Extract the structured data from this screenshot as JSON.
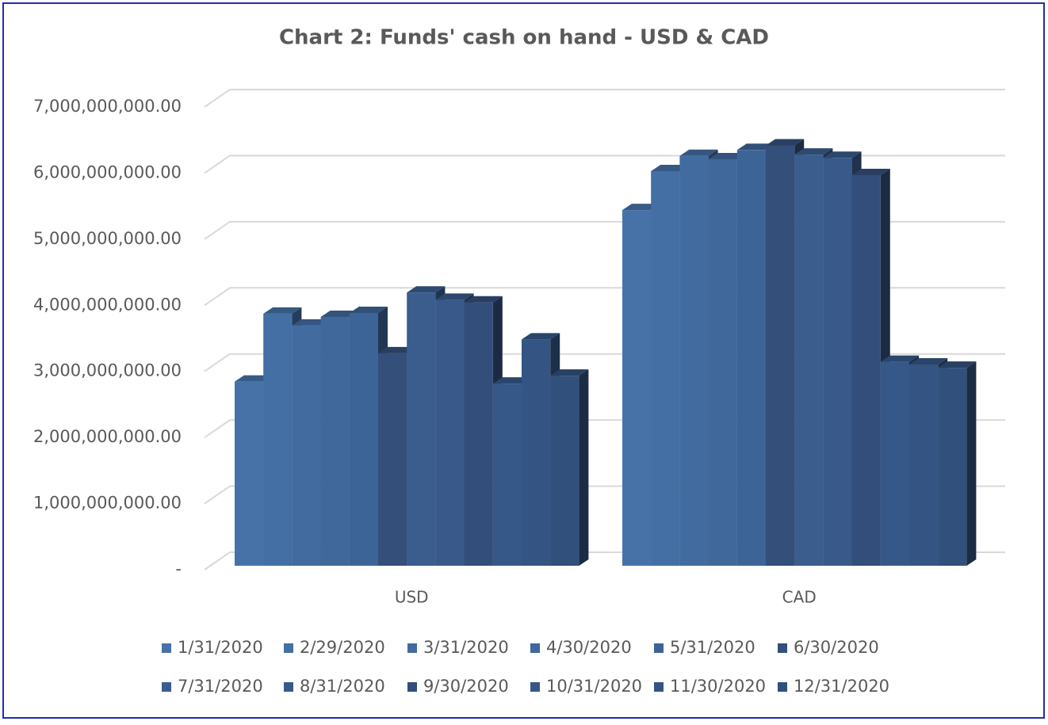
{
  "chart_data": {
    "type": "bar3d",
    "title": "Chart 2: Funds' cash on hand - USD & CAD",
    "categories": [
      "USD",
      "CAD"
    ],
    "ylim": [
      0,
      7000000000
    ],
    "yticks": [
      {
        "value": 0,
        "label": "-"
      },
      {
        "value": 1000000000,
        "label": "1,000,000,000.00"
      },
      {
        "value": 2000000000,
        "label": "2,000,000,000.00"
      },
      {
        "value": 3000000000,
        "label": "3,000,000,000.00"
      },
      {
        "value": 4000000000,
        "label": "4,000,000,000.00"
      },
      {
        "value": 5000000000,
        "label": "5,000,000,000.00"
      },
      {
        "value": 6000000000,
        "label": "6,000,000,000.00"
      },
      {
        "value": 7000000000,
        "label": "7,000,000,000.00"
      }
    ],
    "grid": true,
    "legend": "bottom",
    "series": [
      {
        "name": "1/31/2020",
        "color": "#4672a8",
        "values": [
          2790000000,
          5390000000
        ]
      },
      {
        "name": "2/29/2020",
        "color": "#446fa4",
        "values": [
          3820000000,
          5980000000
        ]
      },
      {
        "name": "3/31/2020",
        "color": "#426ca0",
        "values": [
          3640000000,
          6210000000
        ]
      },
      {
        "name": "4/30/2020",
        "color": "#40689b",
        "values": [
          3770000000,
          6160000000
        ]
      },
      {
        "name": "5/31/2020",
        "color": "#3d6496",
        "values": [
          3830000000,
          6300000000
        ]
      },
      {
        "name": "6/30/2020",
        "color": "#344f7a",
        "values": [
          3220000000,
          6370000000
        ]
      },
      {
        "name": "7/31/2020",
        "color": "#3a5d8e",
        "values": [
          4140000000,
          6230000000
        ]
      },
      {
        "name": "8/31/2020",
        "color": "#38598a",
        "values": [
          4030000000,
          6180000000
        ]
      },
      {
        "name": "9/30/2020",
        "color": "#334e7a",
        "values": [
          3990000000,
          5920000000
        ]
      },
      {
        "name": "10/31/2020",
        "color": "#365888",
        "values": [
          2760000000,
          3090000000
        ]
      },
      {
        "name": "11/30/2020",
        "color": "#345584",
        "values": [
          3430000000,
          3050000000
        ]
      },
      {
        "name": "12/31/2020",
        "color": "#31507c",
        "values": [
          2880000000,
          3000000000
        ]
      }
    ]
  }
}
